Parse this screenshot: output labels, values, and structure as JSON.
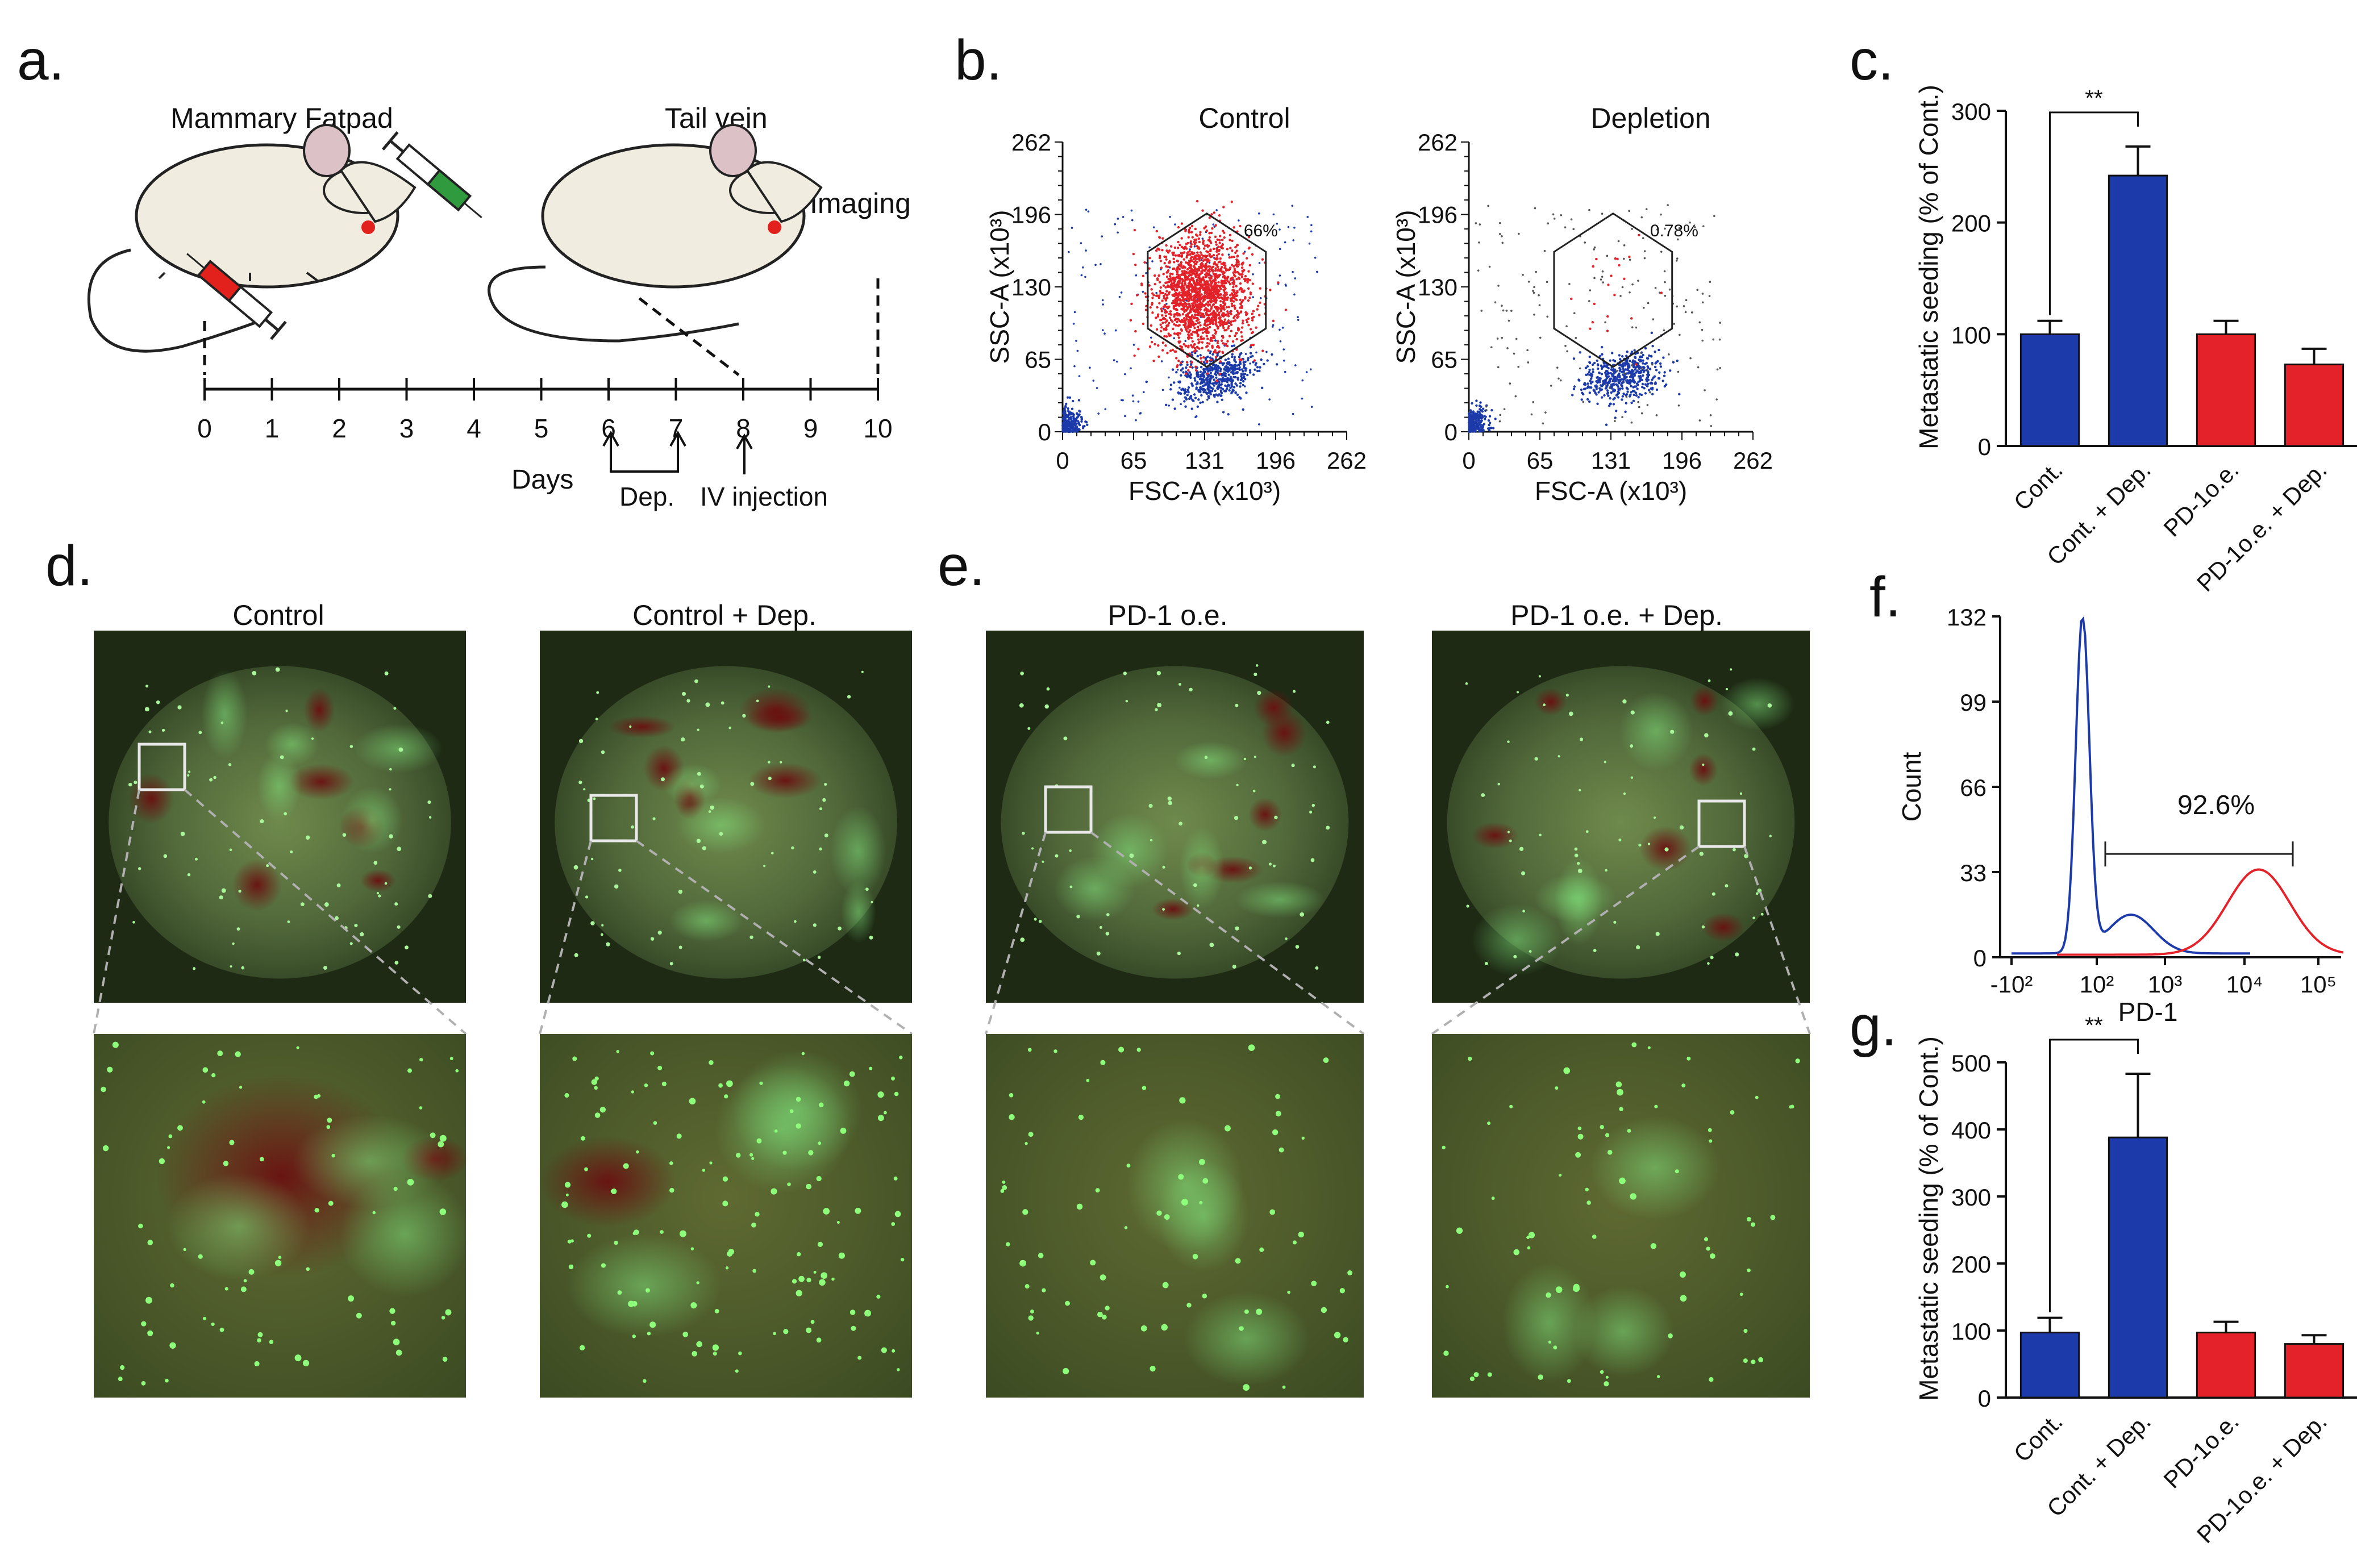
{
  "panels": {
    "a": {
      "label": "a.",
      "mammary_label": "Mammary Fatpad",
      "tailvein_label": "Tail vein",
      "imaging_label": "Imaging",
      "day_ticks": [
        "0",
        "1",
        "2",
        "3",
        "4",
        "5",
        "6",
        "7",
        "8",
        "9",
        "10"
      ],
      "days_label": "Days",
      "dep_label": "Dep.",
      "iv_label": "IV injection"
    },
    "b": {
      "label": "b.",
      "plots": [
        {
          "title": "Control",
          "gate_pct": "66%"
        },
        {
          "title": "Depletion",
          "gate_pct": "0.78%"
        }
      ],
      "x_ticks": [
        "0",
        "65",
        "131",
        "196",
        "262"
      ],
      "y_ticks": [
        "0",
        "65",
        "130",
        "196",
        "262"
      ],
      "xlabel": "FSC-A (x10³)",
      "ylabel": "SSC-A (x10³)"
    },
    "d": {
      "label": "d.",
      "left_title": "Control",
      "right_title": "Control + Dep."
    },
    "e": {
      "label": "e.",
      "left_title": "PD-1 o.e.",
      "right_title": "PD-1 o.e. + Dep."
    },
    "f": {
      "label": "f.",
      "ylabel": "Count",
      "xlabel": "PD-1",
      "y_ticks": [
        "0",
        "33",
        "66",
        "99",
        "132"
      ],
      "x_ticks": [
        "-10²",
        "10²",
        "10³",
        "10⁴",
        "10⁵"
      ],
      "gate_pct": "92.6%"
    }
  },
  "colors": {
    "blue": "#1c3aa9",
    "red": "#e3222a",
    "lung_dark": "#1e2a14"
  },
  "chart_data": [
    {
      "id": "c",
      "label": "c.",
      "type": "bar",
      "categories": [
        "Cont.",
        "Cont. + Dep.",
        "PD-1o.e.",
        "PD-1o.e. + Dep."
      ],
      "values": [
        100,
        242,
        100,
        73
      ],
      "errors": [
        12,
        26,
        12,
        14
      ],
      "bar_colors": [
        "#1c3aa9",
        "#1c3aa9",
        "#e3222a",
        "#e3222a"
      ],
      "ylabel": "Metastatic seeding (% of Cont.)",
      "ylim": [
        0,
        300
      ],
      "yticks": [
        "0",
        "100",
        "200",
        "300"
      ],
      "significance": "**"
    },
    {
      "id": "g",
      "label": "g.",
      "type": "bar",
      "categories": [
        "Cont.",
        "Cont. + Dep.",
        "PD-1o.e.",
        "PD-1o.e. + Dep."
      ],
      "values": [
        97,
        388,
        97,
        80
      ],
      "errors": [
        22,
        95,
        16,
        13
      ],
      "bar_colors": [
        "#1c3aa9",
        "#1c3aa9",
        "#e3222a",
        "#e3222a"
      ],
      "ylabel": "Metastatic seeding (% of Cont.)",
      "ylim": [
        0,
        500
      ],
      "yticks": [
        "0",
        "100",
        "200",
        "300",
        "400",
        "500"
      ],
      "significance": "**"
    }
  ]
}
